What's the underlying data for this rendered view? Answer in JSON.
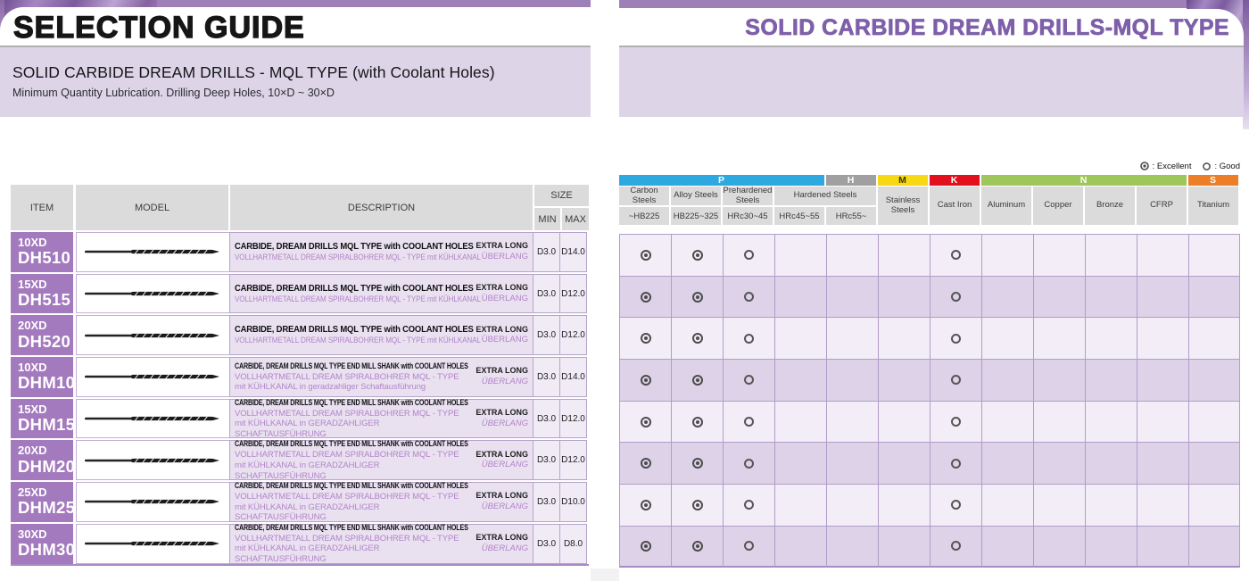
{
  "left": {
    "header_title": "SELECTION GUIDE",
    "section_title": "SOLID CARBIDE DREAM DRILLS - MQL TYPE (with Coolant Holes)",
    "section_subtitle": "Minimum Quantity Lubrication. Drilling Deep Holes, 10×D ~ 30×D",
    "table": {
      "headers": {
        "item": "ITEM",
        "model": "MODEL",
        "description": "DESCRIPTION",
        "size": "SIZE",
        "min": "MIN",
        "max": "MAX"
      },
      "rows": [
        {
          "item_size": "10XD",
          "item_model": "DH510",
          "desc_en": "CARBIDE, DREAM DRILLS MQL TYPE with COOLANT HOLES",
          "desc_de": "VOLLHARTMETALL DREAM SPIRALBOHRER MQL - TYPE mit KÜHLKANAL",
          "note_en": "EXTRA LONG",
          "note_de": "ÜBERLANG",
          "note_de_italic": false,
          "min": "D3.0",
          "max": "D14.0"
        },
        {
          "item_size": "15XD",
          "item_model": "DH515",
          "desc_en": "CARBIDE, DREAM DRILLS MQL TYPE with COOLANT HOLES",
          "desc_de": "VOLLHARTMETALL DREAM SPIRALBOHRER MQL - TYPE mit KÜHLKANAL",
          "note_en": "EXTRA LONG",
          "note_de": "ÜBERLANG",
          "note_de_italic": false,
          "min": "D3.0",
          "max": "D12.0"
        },
        {
          "item_size": "20XD",
          "item_model": "DH520",
          "desc_en": "CARBIDE, DREAM DRILLS MQL TYPE with COOLANT HOLES",
          "desc_de": "VOLLHARTMETALL DREAM SPIRALBOHRER MQL - TYPE mit KÜHLKANAL",
          "note_en": "EXTRA LONG",
          "note_de": "ÜBERLANG",
          "note_de_italic": false,
          "min": "D3.0",
          "max": "D12.0"
        },
        {
          "item_size": "10XD",
          "item_model": "DHM10",
          "desc_en": "CARBIDE, DREAM DRILLS MQL TYPE END MILL SHANK with COOLANT HOLES",
          "desc_de": "VOLLHARTMETALL DREAM SPIRALBOHRER MQL - TYPE mit KÜHLKANAL in geradzahliger Schaftausführung",
          "note_en": "EXTRA LONG",
          "note_de": "ÜBERLANG",
          "note_de_italic": true,
          "min": "D3.0",
          "max": "D14.0"
        },
        {
          "item_size": "15XD",
          "item_model": "DHM15",
          "desc_en": "CARBIDE, DREAM DRILLS MQL TYPE END MILL SHANK with COOLANT HOLES",
          "desc_de": "VOLLHARTMETALL DREAM SPIRALBOHRER MQL - TYPE mit KÜHLKANAL in GERADZAHLIGER SCHAFTAUSFÜHRUNG",
          "note_en": "EXTRA LONG",
          "note_de": "ÜBERLANG",
          "note_de_italic": true,
          "min": "D3.0",
          "max": "D12.0"
        },
        {
          "item_size": "20XD",
          "item_model": "DHM20",
          "desc_en": "CARBIDE, DREAM DRILLS MQL TYPE END MILL SHANK with COOLANT HOLES",
          "desc_de": "VOLLHARTMETALL DREAM SPIRALBOHRER MQL - TYPE mit KÜHLKANAL in GERADZAHLIGER SCHAFTAUSFÜHRUNG",
          "note_en": "EXTRA LONG",
          "note_de": "ÜBERLANG",
          "note_de_italic": true,
          "min": "D3.0",
          "max": "D12.0"
        },
        {
          "item_size": "25XD",
          "item_model": "DHM25",
          "desc_en": "CARBIDE, DREAM DRILLS MQL TYPE END MILL SHANK with COOLANT HOLES",
          "desc_de": "VOLLHARTMETALL DREAM SPIRALBOHRER MQL - TYPE mit KÜHLKANAL in GERADZAHLIGER SCHAFTAUSFÜHRUNG",
          "note_en": "EXTRA LONG",
          "note_de": "ÜBERLANG",
          "note_de_italic": true,
          "min": "D3.0",
          "max": "D10.0"
        },
        {
          "item_size": "30XD",
          "item_model": "DHM30",
          "desc_en": "CARBIDE, DREAM DRILLS MQL TYPE END MILL SHANK with COOLANT HOLES",
          "desc_de": "VOLLHARTMETALL DREAM SPIRALBOHRER MQL - TYPE mit KÜHLKANAL in GERADZAHLIGER SCHAFTAUSFÜHRUNG",
          "note_en": "EXTRA LONG",
          "note_de": "ÜBERLANG",
          "note_de_italic": true,
          "min": "D3.0",
          "max": "D8.0"
        }
      ]
    }
  },
  "right": {
    "header_title": "SOLID CARBIDE DREAM DRILLS-MQL TYPE",
    "legend": {
      "excellent_symbol": "◎",
      "excellent_text": ": Excellent",
      "good_symbol": "○",
      "good_text": ": Good"
    },
    "material_groups": [
      {
        "letter": "P",
        "color": "#2ea9e0",
        "letter_color": "#ffffff",
        "cols": 4
      },
      {
        "letter": "H",
        "color": "#a0a0a0",
        "letter_color": "#ffffff",
        "cols": 1
      },
      {
        "letter": "M",
        "color": "#f8d815",
        "letter_color": "#3c3800",
        "cols": 1
      },
      {
        "letter": "K",
        "color": "#e2101c",
        "letter_color": "#ffffff",
        "cols": 1
      },
      {
        "letter": "N",
        "color": "#9fc65a",
        "letter_color": "#ffffff",
        "cols": 4
      },
      {
        "letter": "S",
        "color": "#eb7e26",
        "letter_color": "#ffffff",
        "cols": 1
      }
    ],
    "columns": [
      {
        "title": "Carbon Steels",
        "hardness": "~HB225"
      },
      {
        "title": "Alloy Steels",
        "hardness": "HB225~325"
      },
      {
        "title": "Prehardened Steels",
        "hardness": "HRc30~45"
      },
      {
        "title": "Hardened Steels",
        "hardness": "HRc45~55",
        "title_span": 2
      },
      {
        "title": "",
        "hardness": "HRc55~"
      },
      {
        "title": "Stainless Steels",
        "full_height": true
      },
      {
        "title": "Cast Iron",
        "full_height": true
      },
      {
        "title": "Aluminum",
        "full_height": true
      },
      {
        "title": "Copper",
        "full_height": true
      },
      {
        "title": "Bronze",
        "full_height": true
      },
      {
        "title": "CFRP",
        "full_height": true
      },
      {
        "title": "Titanium",
        "full_height": true
      }
    ],
    "ratings_by_row": [
      [
        "excellent",
        "excellent",
        "good",
        "",
        "",
        "",
        "good",
        "",
        "",
        "",
        "",
        ""
      ],
      [
        "excellent",
        "excellent",
        "good",
        "",
        "",
        "",
        "good",
        "",
        "",
        "",
        "",
        ""
      ],
      [
        "excellent",
        "excellent",
        "good",
        "",
        "",
        "",
        "good",
        "",
        "",
        "",
        "",
        ""
      ],
      [
        "excellent",
        "excellent",
        "good",
        "",
        "",
        "",
        "good",
        "",
        "",
        "",
        "",
        ""
      ],
      [
        "excellent",
        "excellent",
        "good",
        "",
        "",
        "",
        "good",
        "",
        "",
        "",
        "",
        ""
      ],
      [
        "excellent",
        "excellent",
        "good",
        "",
        "",
        "",
        "good",
        "",
        "",
        "",
        "",
        ""
      ],
      [
        "excellent",
        "excellent",
        "good",
        "",
        "",
        "",
        "good",
        "",
        "",
        "",
        "",
        ""
      ],
      [
        "excellent",
        "excellent",
        "good",
        "",
        "",
        "",
        "good",
        "",
        "",
        "",
        "",
        ""
      ]
    ]
  },
  "colors": {
    "accent_purple": "#7e5fa9",
    "item_cell_purple": "#a47abe",
    "band_light_purple": "#ddd5e7",
    "grid_purple": "#b19dc8",
    "row_odd": "#f2edf7",
    "row_even": "#ddd2e8",
    "top_strip": "#9d80b8"
  }
}
